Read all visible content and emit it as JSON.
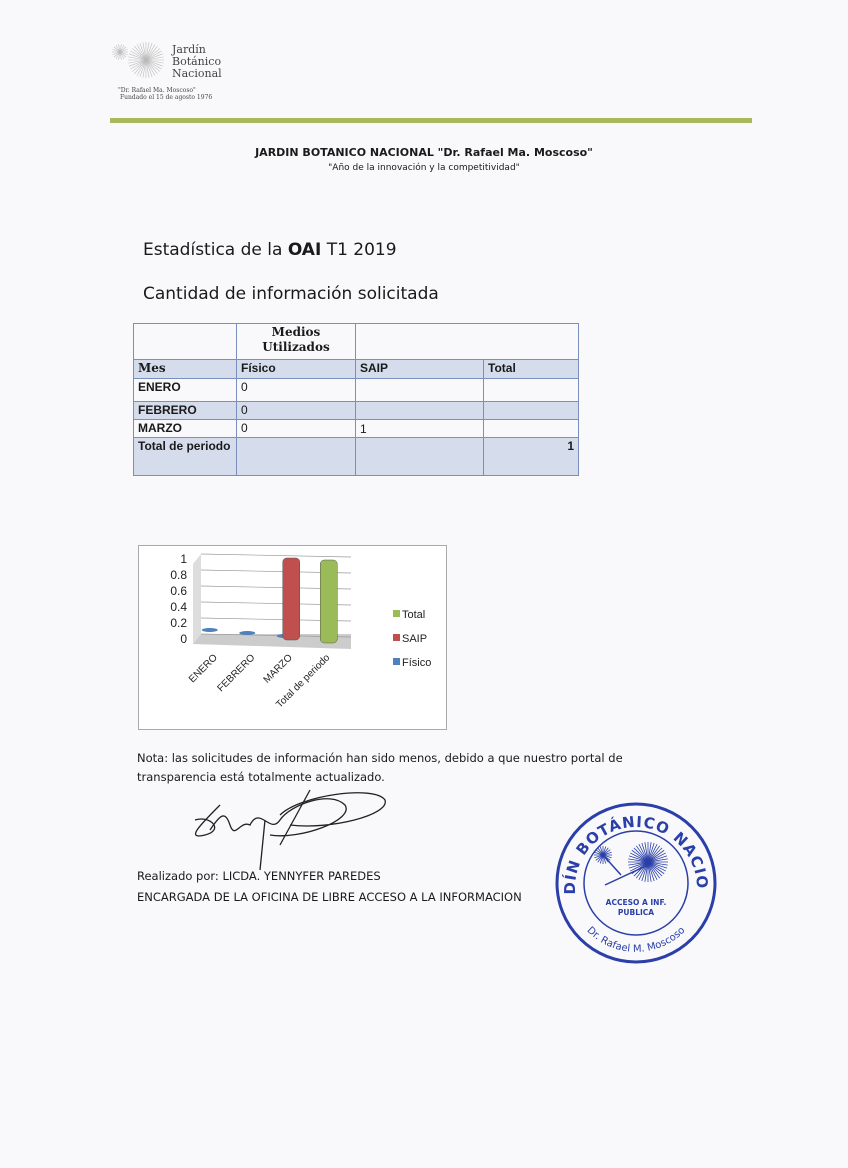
{
  "logo": {
    "lines": [
      "Jardín",
      "Botánico",
      "Nacional"
    ],
    "subtitle": "\"Dr. Rafael Ma. Moscoso\"",
    "founded": "Fundado el 15 de agosto 1976"
  },
  "header": {
    "institution": "JARDIN BOTANICO  NACIONAL \"Dr. Rafael Ma. Moscoso\"",
    "motto": "\"Año  de la innovación y la competitividad\""
  },
  "title": {
    "prefix": "Estadística de la ",
    "bold": "OAI",
    "suffix": " T1 2019"
  },
  "subtitle": "Cantidad de información solicitada",
  "table": {
    "group_header": "Medios Utilizados",
    "columns": [
      "Mes",
      "Físico",
      "SAIP",
      "Total"
    ],
    "rows": [
      [
        "ENERO",
        "0",
        "",
        ""
      ],
      [
        "FEBRERO",
        "0",
        "",
        ""
      ],
      [
        "MARZO",
        "0",
        "1",
        ""
      ],
      [
        "Total de periodo",
        "",
        "",
        "1"
      ]
    ]
  },
  "chart_data": {
    "type": "bar",
    "style": "3d-column",
    "categories": [
      "ENERO",
      "FEBRERO",
      "MARZO",
      "Total de periodo"
    ],
    "series": [
      {
        "name": "Físico",
        "color": "#4f81bd",
        "values": [
          0,
          0,
          0,
          null
        ]
      },
      {
        "name": "SAIP",
        "color": "#c0504d",
        "values": [
          null,
          null,
          1,
          null
        ]
      },
      {
        "name": "Total",
        "color": "#9bbb59",
        "values": [
          null,
          null,
          null,
          1
        ]
      }
    ],
    "yticks": [
      "0",
      "0.2",
      "0.4",
      "0.6",
      "0.8",
      "1"
    ],
    "ylim": [
      0,
      1
    ],
    "grid": true,
    "legend": "right",
    "legend_order": [
      "Total",
      "SAIP",
      "Físico"
    ]
  },
  "nota": "Nota: las solicitudes de información han sido menos, debido a que nuestro portal de transparencia está totalmente actualizado.",
  "signature": {
    "made_by": "Realizado por: LICDA. YENNYFER PAREDES",
    "role": "ENCARGADA DE LA OFICINA DE LIBRE ACCESO A LA INFORMACION"
  },
  "stamp": {
    "top": "JARDÍN BOTÁNICO NACIONAL",
    "center": "ACCESO A INF.",
    "center2": "PUBLICA",
    "bottom": "Dr. Rafael M. Moscoso",
    "color": "#2a3fa8"
  }
}
